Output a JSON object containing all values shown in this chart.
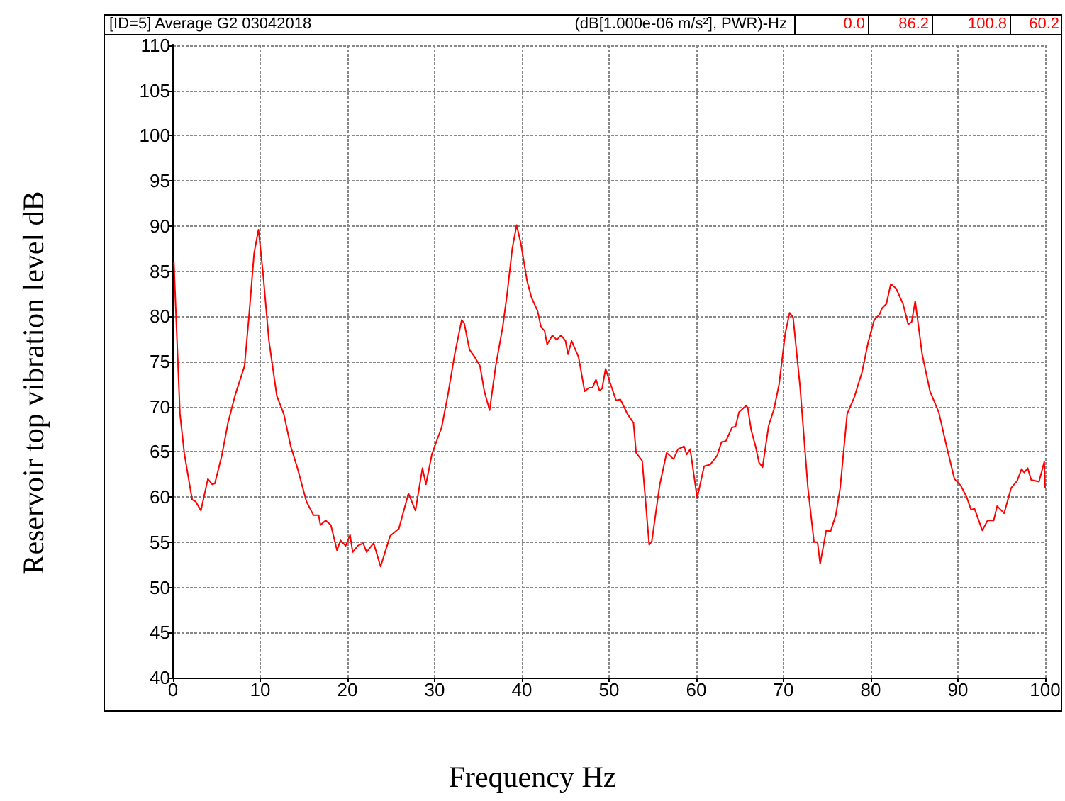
{
  "chart_data": {
    "type": "line",
    "title": "[ID=5] Average G2 03042018",
    "subtitle": "(dB[1.000e-06 m/s²], PWR)-Hz",
    "annotations": [
      "0.0",
      "86.2",
      "100.8",
      "60.2"
    ],
    "xlabel": "Frequency Hz",
    "ylabel": "Reservoir top vibration level dB",
    "xlim": [
      0,
      100
    ],
    "xticks": [
      0,
      10,
      20,
      30,
      40,
      50,
      60,
      70,
      80,
      90,
      100
    ],
    "ylim": [
      40,
      110
    ],
    "yticks": [
      40,
      45,
      50,
      55,
      60,
      65,
      70,
      75,
      80,
      85,
      90,
      95,
      100,
      105,
      110
    ],
    "grid": true,
    "marker": "none",
    "line_style": "solid",
    "series": [
      {
        "color": "#ff0000",
        "x": [
          0.1,
          0.8,
          1.3,
          2.2,
          2.6,
          3.2,
          4.0,
          4.5,
          4.8,
          5.6,
          6.3,
          7.1,
          8.2,
          8.7,
          9.3,
          9.8,
          10.3,
          11.0,
          11.9,
          12.7,
          13.5,
          14.3,
          15.3,
          16.1,
          16.7,
          16.9,
          17.5,
          18.1,
          18.8,
          19.2,
          19.8,
          20.3,
          20.6,
          21.2,
          21.8,
          22.2,
          23.0,
          23.8,
          24.9,
          25.9,
          27.0,
          27.8,
          28.6,
          29.0,
          29.7,
          30.8,
          31.5,
          32.3,
          33.1,
          33.4,
          34.0,
          34.6,
          35.2,
          35.7,
          36.3,
          37.0,
          37.8,
          38.3,
          38.9,
          39.4,
          39.9,
          40.6,
          41.1,
          41.8,
          42.2,
          42.6,
          42.9,
          43.5,
          44.0,
          44.5,
          45.0,
          45.3,
          45.7,
          46.5,
          47.2,
          47.7,
          48.1,
          48.5,
          48.9,
          49.2,
          49.6,
          50.1,
          50.8,
          51.3,
          52.1,
          52.8,
          53.1,
          53.8,
          54.6,
          54.9,
          55.8,
          56.6,
          57.4,
          57.9,
          58.6,
          58.9,
          59.3,
          60.1,
          60.9,
          61.6,
          62.4,
          62.9,
          63.4,
          64.1,
          64.5,
          64.9,
          65.7,
          65.9,
          66.3,
          66.8,
          67.2,
          67.6,
          68.3,
          68.9,
          69.5,
          70.2,
          70.7,
          71.1,
          71.9,
          72.8,
          73.5,
          73.9,
          74.2,
          74.9,
          75.4,
          76.0,
          76.5,
          77.3,
          78.1,
          79.0,
          79.7,
          80.4,
          81.0,
          81.3,
          81.8,
          82.3,
          82.9,
          83.7,
          84.3,
          84.7,
          85.1,
          85.9,
          86.8,
          87.8,
          88.7,
          89.6,
          90.3,
          91.0,
          91.5,
          91.9,
          92.8,
          93.4,
          94.1,
          94.5,
          95.3,
          96.1,
          96.8,
          97.3,
          97.6,
          98.0,
          98.4,
          99.3,
          99.9,
          100
        ],
        "values": [
          86.0,
          69.2,
          64.8,
          59.7,
          59.5,
          58.5,
          62.0,
          61.4,
          61.5,
          64.6,
          68.2,
          71.2,
          74.5,
          79.9,
          87.0,
          89.6,
          85.0,
          77.3,
          71.2,
          69.2,
          65.6,
          63.1,
          59.5,
          58.0,
          58.0,
          56.9,
          57.4,
          56.9,
          54.1,
          55.2,
          54.6,
          55.8,
          53.9,
          54.6,
          54.9,
          53.9,
          54.9,
          52.3,
          55.7,
          56.5,
          60.4,
          58.5,
          63.2,
          61.4,
          64.8,
          67.7,
          71.2,
          75.8,
          79.6,
          79.2,
          76.3,
          75.5,
          74.5,
          71.7,
          69.6,
          74.5,
          78.8,
          82.4,
          87.5,
          90.1,
          88.0,
          83.9,
          82.1,
          80.6,
          78.8,
          78.4,
          76.9,
          77.9,
          77.4,
          77.9,
          77.3,
          75.8,
          77.3,
          75.5,
          71.7,
          72.1,
          72.1,
          73.0,
          71.8,
          72.0,
          74.2,
          72.7,
          70.7,
          70.8,
          69.2,
          68.2,
          64.9,
          64.0,
          54.7,
          55.1,
          61.3,
          64.9,
          64.2,
          65.3,
          65.6,
          64.7,
          65.3,
          59.9,
          63.4,
          63.6,
          64.6,
          66.1,
          66.2,
          67.7,
          67.8,
          69.4,
          70.1,
          69.9,
          67.4,
          65.6,
          63.8,
          63.3,
          67.9,
          69.7,
          72.5,
          78.1,
          80.4,
          79.9,
          72.2,
          61.0,
          55.0,
          55.0,
          52.6,
          56.3,
          56.2,
          58.0,
          61.0,
          69.2,
          71.0,
          73.8,
          77.1,
          79.6,
          80.2,
          80.9,
          81.4,
          83.6,
          83.1,
          81.4,
          79.1,
          79.4,
          81.7,
          75.8,
          71.7,
          69.4,
          65.6,
          62.0,
          61.3,
          60.0,
          58.6,
          58.7,
          56.3,
          57.4,
          57.4,
          59.0,
          58.2,
          61.0,
          61.8,
          63.1,
          62.7,
          63.2,
          61.9,
          61.7,
          63.9,
          61.0
        ]
      }
    ]
  }
}
